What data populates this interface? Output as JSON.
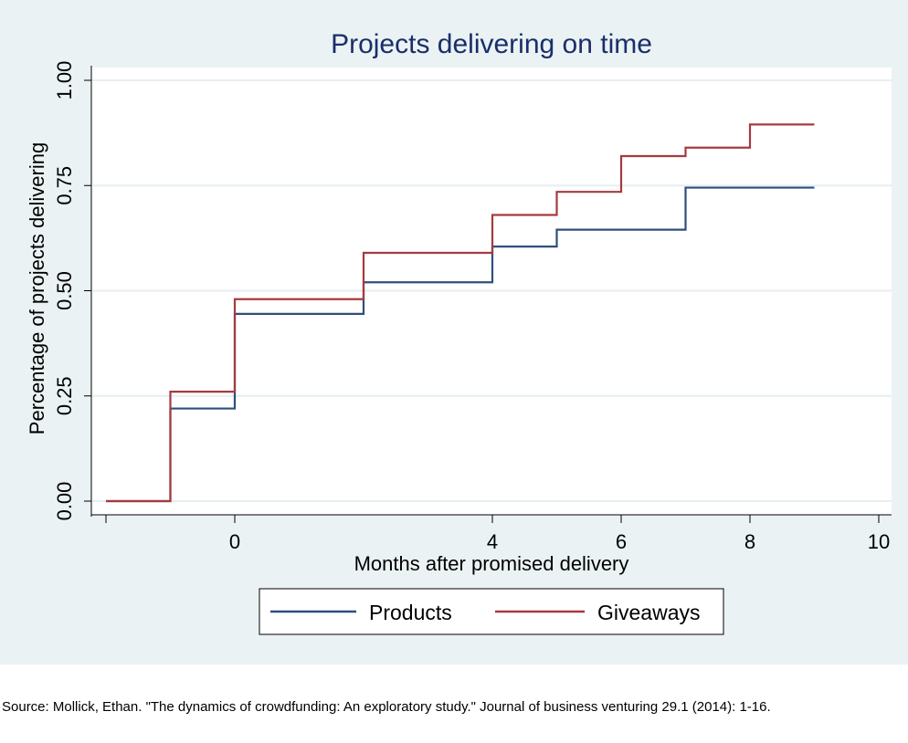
{
  "chart_data": {
    "type": "line",
    "step": true,
    "title": "Projects delivering on time",
    "xlabel": "Months after promised delivery",
    "ylabel": "Percentage of projects delivering",
    "xlim": [
      -2,
      10
    ],
    "ylim": [
      0,
      1
    ],
    "x_ticks": [
      0,
      4,
      6,
      8,
      10
    ],
    "x_tick_labels": [
      "0",
      "4",
      "6",
      "8",
      "10"
    ],
    "x_unlabeled_ticks": [
      -2
    ],
    "y_ticks": [
      0,
      0.25,
      0.5,
      0.75,
      1
    ],
    "y_tick_labels": [
      "0.00",
      "0.25",
      "0.50",
      "0.75",
      "1.00"
    ],
    "grid": true,
    "legend_position": "bottom",
    "series": [
      {
        "name": "Products",
        "color": "#2e4e7e",
        "x": [
          -2,
          -1,
          0,
          1,
          2,
          3,
          4,
          5,
          6,
          7,
          8,
          9
        ],
        "y": [
          0,
          0.22,
          0.445,
          0.445,
          0.52,
          0.52,
          0.605,
          0.645,
          0.645,
          0.745,
          0.745,
          0.745
        ]
      },
      {
        "name": "Giveaways",
        "color": "#a63a3f",
        "x": [
          -2,
          -1,
          0,
          1,
          2,
          3,
          4,
          5,
          6,
          7,
          8,
          9
        ],
        "y": [
          0,
          0.26,
          0.48,
          0.48,
          0.59,
          0.59,
          0.68,
          0.735,
          0.82,
          0.84,
          0.895,
          0.895
        ]
      }
    ]
  },
  "source_note": "Source: Mollick, Ethan. \"The dynamics of crowdfunding: An exploratory study.\" Journal of business venturing 29.1 (2014): 1-16."
}
